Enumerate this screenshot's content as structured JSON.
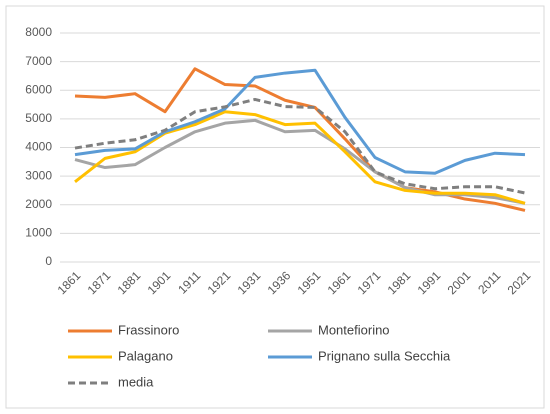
{
  "chart_data": {
    "type": "line",
    "categories": [
      "1861",
      "1871",
      "1881",
      "1901",
      "1911",
      "1921",
      "1931",
      "1936",
      "1951",
      "1961",
      "1971",
      "1981",
      "1991",
      "2001",
      "2011",
      "2021"
    ],
    "series": [
      {
        "name": "Frassinoro",
        "color": "#ED7D31",
        "values": [
          5800,
          5750,
          5880,
          5250,
          6750,
          6200,
          6150,
          5650,
          5400,
          4300,
          3150,
          2600,
          2450,
          2200,
          2050,
          1800
        ]
      },
      {
        "name": "Montefiorino",
        "color": "#A5A5A5",
        "values": [
          3580,
          3300,
          3400,
          4000,
          4550,
          4850,
          4950,
          4550,
          4600,
          3950,
          3150,
          2600,
          2350,
          2350,
          2250,
          2050
        ]
      },
      {
        "name": "Palagano",
        "color": "#FFC000",
        "values": [
          2800,
          3620,
          3850,
          4500,
          4800,
          5250,
          5150,
          4800,
          4850,
          3850,
          2800,
          2500,
          2400,
          2400,
          2350,
          2050
        ]
      },
      {
        "name": "Prignano sulla Secchia",
        "color": "#5B9BD5",
        "values": [
          3750,
          3900,
          3950,
          4550,
          4900,
          5350,
          6450,
          6600,
          6700,
          5050,
          3650,
          3150,
          3100,
          3550,
          3800,
          3750
        ]
      },
      {
        "name": "media",
        "color": "#7F7F7F",
        "dashed": true,
        "values": [
          3980,
          4150,
          4270,
          4600,
          5250,
          5420,
          5680,
          5430,
          5400,
          4550,
          3150,
          2730,
          2560,
          2630,
          2630,
          2410
        ]
      }
    ],
    "ylim": [
      0,
      8000
    ],
    "yticks": [
      0,
      1000,
      2000,
      3000,
      4000,
      5000,
      6000,
      7000,
      8000
    ],
    "grid": true
  }
}
